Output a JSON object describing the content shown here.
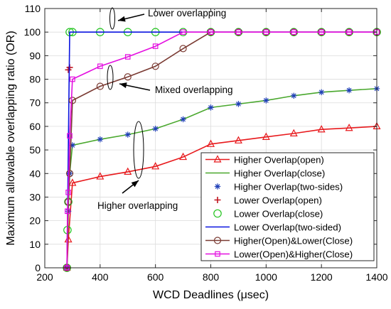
{
  "chart_data": {
    "type": "line",
    "title": "",
    "xlabel": "WCD Deadlines (μsec)",
    "ylabel": "Maximum allowable overlapping ratio (OR)",
    "xlim": [
      200,
      1400
    ],
    "ylim": [
      0,
      110
    ],
    "xticks": [
      200,
      400,
      600,
      800,
      1000,
      1200,
      1400
    ],
    "yticks": [
      0,
      10,
      20,
      30,
      40,
      50,
      60,
      70,
      80,
      90,
      100,
      110
    ],
    "grid": true,
    "legend_position": "bottom-right",
    "annotations": [
      {
        "text": "Lower overlapping"
      },
      {
        "text": "Mixed overlapping"
      },
      {
        "text": "Higher overlapping"
      }
    ],
    "series": [
      {
        "name": "Higher Overlap(open)",
        "color": "#e8191c",
        "line": "solid",
        "marker": "triangle",
        "x": [
          280,
          285,
          300,
          400,
          500,
          600,
          700,
          800,
          900,
          1000,
          1100,
          1200,
          1300,
          1400
        ],
        "y": [
          0,
          12,
          36,
          38.7,
          40.7,
          43,
          47,
          52.5,
          54,
          55.5,
          57,
          58.7,
          59.3,
          60
        ]
      },
      {
        "name": "Higher Overlap(close)",
        "color": "#4aa82e",
        "line": "solid",
        "marker": "none",
        "x": [
          280,
          285,
          290,
          300,
          400,
          500,
          600,
          700,
          800,
          900,
          1000,
          1100,
          1200,
          1300,
          1400
        ],
        "y": [
          0,
          24,
          40,
          52,
          54.5,
          56.5,
          59,
          63,
          68,
          69.5,
          71,
          73,
          74.5,
          75.3,
          76
        ]
      },
      {
        "name": "Higher Overlap(two-sides)",
        "color": "#1f3fb8",
        "line": "none",
        "marker": "asterisk",
        "x": [
          280,
          285,
          290,
          300,
          400,
          500,
          600,
          700,
          800,
          900,
          1000,
          1100,
          1200,
          1300,
          1400
        ],
        "y": [
          0,
          24,
          40,
          52,
          54.5,
          56.5,
          59,
          63,
          68,
          69.5,
          71,
          73,
          74.5,
          75.3,
          76
        ]
      },
      {
        "name": "Lower Overlap(open)",
        "color": "#c0141f",
        "line": "none",
        "marker": "plus",
        "x": [
          280,
          285,
          290
        ],
        "y": [
          0,
          84,
          85
        ]
      },
      {
        "name": "Lower Overlap(close)",
        "color": "#22c41e",
        "line": "none",
        "marker": "circle",
        "x": [
          280,
          282,
          285,
          290,
          300,
          400,
          500,
          600,
          700,
          800,
          900,
          1000,
          1100,
          1200,
          1300,
          1400
        ],
        "y": [
          0,
          16,
          28,
          100,
          100,
          100,
          100,
          100,
          100,
          100,
          100,
          100,
          100,
          100,
          100,
          100
        ]
      },
      {
        "name": "Lower Overlap(two-sided)",
        "color": "#0a14e0",
        "line": "solid",
        "marker": "none",
        "x": [
          280,
          290,
          1400
        ],
        "y": [
          0,
          100,
          100
        ]
      },
      {
        "name": "Higher(Open)&Lower(Close)",
        "color": "#7a3a32",
        "line": "solid",
        "marker": "circle",
        "x": [
          280,
          285,
          290,
          300,
          400,
          500,
          600,
          700,
          800,
          900,
          1000,
          1100,
          1200,
          1300,
          1400
        ],
        "y": [
          0,
          28,
          40,
          71,
          77,
          81,
          85.5,
          93,
          100,
          100,
          100,
          100,
          100,
          100,
          100
        ]
      },
      {
        "name": "Lower(Open)&Higher(Close)",
        "color": "#e40fe0",
        "line": "solid",
        "marker": "square",
        "x": [
          280,
          282,
          285,
          290,
          300,
          400,
          500,
          600,
          700,
          800,
          900,
          1000,
          1100,
          1200,
          1300,
          1400
        ],
        "y": [
          0,
          24,
          32,
          56,
          80,
          85.5,
          89.5,
          94,
          100,
          100,
          100,
          100,
          100,
          100,
          100,
          100
        ]
      }
    ]
  }
}
